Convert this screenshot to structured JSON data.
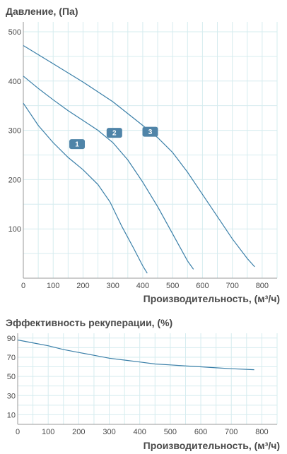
{
  "chart_data": [
    {
      "type": "line",
      "title": "Давление, (Па)",
      "xlabel": "Производительность, (м³/ч)",
      "ylabel": "",
      "xlim": [
        0,
        850
      ],
      "ylim": [
        0,
        520
      ],
      "xticks": [
        0,
        100,
        200,
        300,
        400,
        500,
        600,
        700,
        800
      ],
      "yticks": [
        100,
        200,
        300,
        400,
        500
      ],
      "grid": true,
      "line_color": "#3a7fa8",
      "series": [
        {
          "name": "1",
          "x": [
            0,
            50,
            100,
            150,
            200,
            250,
            290,
            330,
            370,
            400,
            415
          ],
          "y": [
            355,
            310,
            275,
            245,
            220,
            190,
            155,
            105,
            60,
            25,
            10
          ]
        },
        {
          "name": "2",
          "x": [
            0,
            50,
            100,
            150,
            200,
            250,
            300,
            350,
            400,
            450,
            500,
            550,
            570
          ],
          "y": [
            410,
            385,
            362,
            340,
            320,
            300,
            275,
            240,
            195,
            145,
            90,
            35,
            18
          ]
        },
        {
          "name": "3",
          "x": [
            0,
            100,
            200,
            300,
            400,
            450,
            500,
            550,
            600,
            650,
            700,
            750,
            775
          ],
          "y": [
            472,
            435,
            398,
            358,
            310,
            285,
            255,
            215,
            170,
            125,
            80,
            40,
            23
          ]
        }
      ],
      "labels": [
        {
          "text": "1",
          "x": 180,
          "y": 272
        },
        {
          "text": "2",
          "x": 305,
          "y": 295
        },
        {
          "text": "3",
          "x": 425,
          "y": 297
        }
      ]
    },
    {
      "type": "line",
      "title": "Эффективность рекуперации, (%)",
      "xlabel": "Производительность, (м³/ч)",
      "ylabel": "",
      "xlim": [
        0,
        850
      ],
      "ylim": [
        0,
        95
      ],
      "xticks": [
        0,
        100,
        200,
        300,
        400,
        500,
        600,
        700,
        800
      ],
      "yticks": [
        10,
        30,
        50,
        70,
        90
      ],
      "grid": true,
      "line_color": "#3a7fa8",
      "series": [
        {
          "x": [
            0,
            50,
            100,
            150,
            200,
            250,
            300,
            350,
            400,
            450,
            500,
            550,
            600,
            650,
            700,
            775
          ],
          "y": [
            88,
            85,
            82,
            78,
            75,
            72,
            69,
            67,
            65,
            63,
            62,
            61,
            60,
            59,
            58,
            57
          ]
        }
      ]
    }
  ]
}
